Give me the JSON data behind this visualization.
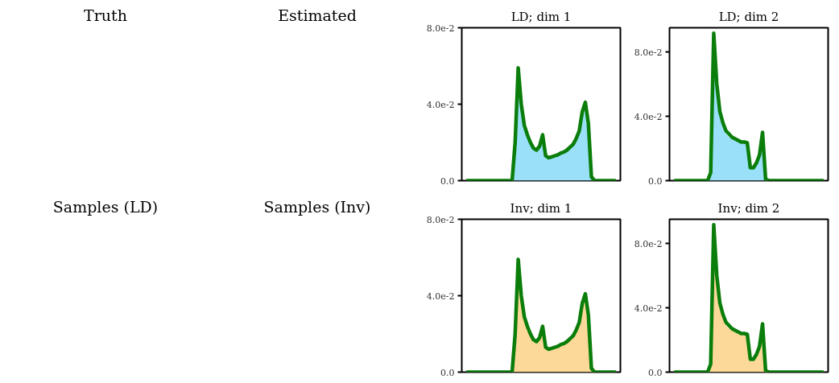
{
  "chart_data": [
    {
      "type": "other",
      "title": "Truth"
    },
    {
      "type": "other",
      "title": "Estimated"
    },
    {
      "type": "area",
      "title": "LD; dim 1",
      "categories": [
        null,
        null,
        null,
        null,
        null,
        null,
        null,
        null,
        null,
        null,
        null,
        null,
        null,
        null,
        null,
        null,
        null,
        null,
        null,
        null,
        null,
        null,
        null,
        null,
        null,
        null,
        null,
        null,
        null,
        null,
        null,
        null,
        null,
        null,
        null,
        null,
        null,
        null,
        null,
        null,
        null,
        null,
        null,
        null,
        null,
        null,
        null,
        null,
        null,
        null
      ],
      "ylim": [
        0,
        0.08
      ],
      "yticks": [
        {
          "value": 0,
          "label": "0.0"
        },
        {
          "value": 0.04,
          "label": "4.0e-2"
        },
        {
          "value": 0.08,
          "label": "8.0e-2"
        }
      ],
      "tick_labels": "y",
      "grid": false,
      "series": [
        {
          "type": "area",
          "color": "#99e0f8",
          "values": [
            0,
            0,
            0,
            0,
            0,
            0,
            0,
            0,
            0,
            0,
            0,
            0,
            0,
            0,
            0,
            0,
            0.018,
            0.055,
            0.038,
            0.027,
            0.022,
            0.019,
            0.016,
            0.015,
            0.017,
            0.02,
            0.012,
            0.011,
            0.012,
            0.012,
            0.013,
            0.014,
            0.015,
            0.016,
            0.017,
            0.019,
            0.021,
            0.025,
            0.034,
            0.037,
            0.028,
            0.002,
            0,
            0,
            0,
            0,
            0,
            0,
            0,
            0
          ]
        },
        {
          "type": "line",
          "color": "#0a7d0a",
          "values": [
            0,
            0,
            0,
            0,
            0,
            0,
            0,
            0,
            0,
            0,
            0,
            0,
            0,
            0,
            0,
            0,
            0.02,
            0.059,
            0.04,
            0.029,
            0.024,
            0.02,
            0.017,
            0.016,
            0.018,
            0.024,
            0.013,
            0.012,
            0.0125,
            0.013,
            0.0135,
            0.0145,
            0.015,
            0.016,
            0.0175,
            0.019,
            0.022,
            0.026,
            0.036,
            0.041,
            0.03,
            0.002,
            0,
            0,
            0,
            0,
            0,
            0,
            0,
            0
          ]
        }
      ]
    },
    {
      "type": "area",
      "title": "LD; dim 2",
      "categories": [
        null,
        null,
        null,
        null,
        null,
        null,
        null,
        null,
        null,
        null,
        null,
        null,
        null,
        null,
        null,
        null,
        null,
        null,
        null,
        null,
        null,
        null,
        null,
        null,
        null,
        null,
        null,
        null,
        null,
        null,
        null,
        null,
        null,
        null,
        null,
        null,
        null,
        null,
        null,
        null,
        null,
        null,
        null,
        null,
        null,
        null,
        null,
        null,
        null,
        null
      ],
      "ylim": [
        0,
        0.095
      ],
      "yticks": [
        {
          "value": 0,
          "label": "0.0"
        },
        {
          "value": 0.04,
          "label": "4.0e-2"
        },
        {
          "value": 0.08,
          "label": "8.0e-2"
        }
      ],
      "tick_labels": "y",
      "grid": false,
      "series": [
        {
          "type": "area",
          "color": "#99e0f8",
          "values": [
            0,
            0,
            0,
            0,
            0,
            0,
            0,
            0,
            0,
            0,
            0,
            0,
            0.004,
            0.085,
            0.056,
            0.04,
            0.033,
            0.029,
            0.027,
            0.026,
            0.025,
            0.024,
            0.023,
            0.023,
            0.022,
            0.007,
            0.007,
            0.01,
            0.014,
            0.027,
            0.001,
            0,
            0,
            0,
            0,
            0,
            0,
            0,
            0,
            0,
            0,
            0,
            0,
            0,
            0,
            0,
            0,
            0,
            0,
            0
          ]
        },
        {
          "type": "line",
          "color": "#0a7d0a",
          "values": [
            0,
            0,
            0,
            0,
            0,
            0,
            0,
            0,
            0,
            0,
            0,
            0,
            0.005,
            0.0916,
            0.06,
            0.043,
            0.036,
            0.031,
            0.029,
            0.027,
            0.026,
            0.025,
            0.024,
            0.024,
            0.0235,
            0.008,
            0.008,
            0.011,
            0.016,
            0.03,
            0.001,
            0,
            0,
            0,
            0,
            0,
            0,
            0,
            0,
            0,
            0,
            0,
            0,
            0,
            0,
            0,
            0,
            0,
            0,
            0
          ]
        }
      ]
    },
    {
      "type": "other",
      "title": "Samples (LD)"
    },
    {
      "type": "other",
      "title": "Samples (Inv)"
    },
    {
      "type": "area",
      "title": "Inv; dim 1",
      "categories": [
        null,
        null,
        null,
        null,
        null,
        null,
        null,
        null,
        null,
        null,
        null,
        null,
        null,
        null,
        null,
        null,
        null,
        null,
        null,
        null,
        null,
        null,
        null,
        null,
        null,
        null,
        null,
        null,
        null,
        null,
        null,
        null,
        null,
        null,
        null,
        null,
        null,
        null,
        null,
        null,
        null,
        null,
        null,
        null,
        null,
        null,
        null,
        null,
        null,
        null
      ],
      "ylim": [
        0,
        0.08
      ],
      "yticks": [
        {
          "value": 0,
          "label": "0.0"
        },
        {
          "value": 0.04,
          "label": "4.0e-2"
        },
        {
          "value": 0.08,
          "label": "8.0e-2"
        }
      ],
      "tick_labels": "y",
      "grid": false,
      "series": [
        {
          "type": "area",
          "color": "#fdd999",
          "values": [
            0,
            0,
            0,
            0,
            0,
            0,
            0,
            0,
            0,
            0,
            0,
            0,
            0,
            0,
            0,
            0,
            0.018,
            0.055,
            0.038,
            0.027,
            0.022,
            0.019,
            0.016,
            0.015,
            0.017,
            0.02,
            0.012,
            0.011,
            0.012,
            0.012,
            0.013,
            0.014,
            0.015,
            0.016,
            0.017,
            0.019,
            0.021,
            0.025,
            0.034,
            0.037,
            0.028,
            0.002,
            0,
            0,
            0,
            0,
            0,
            0,
            0,
            0
          ]
        },
        {
          "type": "line",
          "color": "#0a7d0a",
          "values": [
            0,
            0,
            0,
            0,
            0,
            0,
            0,
            0,
            0,
            0,
            0,
            0,
            0,
            0,
            0,
            0,
            0.02,
            0.059,
            0.04,
            0.029,
            0.024,
            0.02,
            0.017,
            0.016,
            0.018,
            0.024,
            0.013,
            0.012,
            0.0125,
            0.013,
            0.0135,
            0.0145,
            0.015,
            0.016,
            0.0175,
            0.019,
            0.022,
            0.026,
            0.036,
            0.041,
            0.03,
            0.002,
            0,
            0,
            0,
            0,
            0,
            0,
            0,
            0
          ]
        }
      ]
    },
    {
      "type": "area",
      "title": "Inv; dim 2",
      "categories": [
        null,
        null,
        null,
        null,
        null,
        null,
        null,
        null,
        null,
        null,
        null,
        null,
        null,
        null,
        null,
        null,
        null,
        null,
        null,
        null,
        null,
        null,
        null,
        null,
        null,
        null,
        null,
        null,
        null,
        null,
        null,
        null,
        null,
        null,
        null,
        null,
        null,
        null,
        null,
        null,
        null,
        null,
        null,
        null,
        null,
        null,
        null,
        null,
        null,
        null
      ],
      "ylim": [
        0,
        0.095
      ],
      "yticks": [
        {
          "value": 0,
          "label": "0.0"
        },
        {
          "value": 0.04,
          "label": "4.0e-2"
        },
        {
          "value": 0.08,
          "label": "8.0e-2"
        }
      ],
      "tick_labels": "y",
      "grid": false,
      "series": [
        {
          "type": "area",
          "color": "#fdd999",
          "values": [
            0,
            0,
            0,
            0,
            0,
            0,
            0,
            0,
            0,
            0,
            0,
            0,
            0.004,
            0.085,
            0.056,
            0.04,
            0.033,
            0.029,
            0.027,
            0.026,
            0.025,
            0.024,
            0.023,
            0.023,
            0.022,
            0.007,
            0.007,
            0.01,
            0.014,
            0.027,
            0.001,
            0,
            0,
            0,
            0,
            0,
            0,
            0,
            0,
            0,
            0,
            0,
            0,
            0,
            0,
            0,
            0,
            0,
            0,
            0
          ]
        },
        {
          "type": "line",
          "color": "#0a7d0a",
          "values": [
            0,
            0,
            0,
            0,
            0,
            0,
            0,
            0,
            0,
            0,
            0,
            0,
            0.005,
            0.0916,
            0.06,
            0.043,
            0.036,
            0.031,
            0.029,
            0.027,
            0.026,
            0.025,
            0.024,
            0.024,
            0.0235,
            0.008,
            0.008,
            0.011,
            0.016,
            0.03,
            0.001,
            0,
            0,
            0,
            0,
            0,
            0,
            0,
            0,
            0,
            0,
            0,
            0,
            0,
            0,
            0,
            0,
            0,
            0,
            0
          ]
        }
      ]
    }
  ]
}
